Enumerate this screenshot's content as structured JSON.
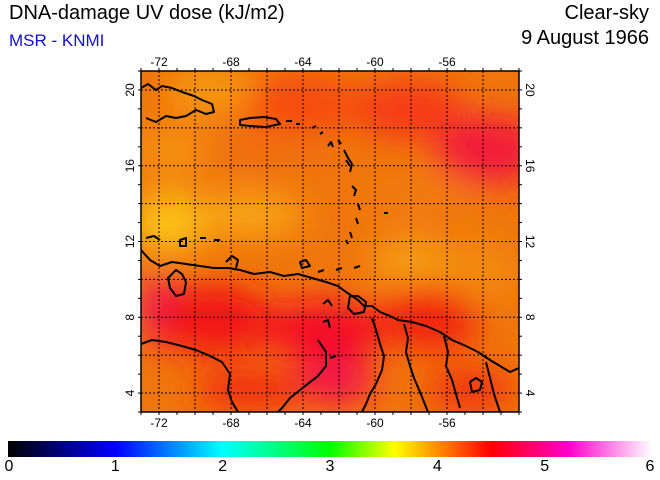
{
  "header": {
    "title": "DNA-damage UV dose (kJ/m2)",
    "source": "MSR - KNMI",
    "sky_condition": "Clear-sky",
    "date": "9 August 1966"
  },
  "map": {
    "lon_range": [
      -73,
      -52
    ],
    "lat_range": [
      3,
      21
    ],
    "lon_ticks": [
      -72,
      -68,
      -64,
      -60,
      -56
    ],
    "lat_ticks": [
      4,
      8,
      12,
      16,
      20
    ],
    "lon_tick_labels": [
      "-72",
      "-68",
      "-64",
      "-60",
      "-56"
    ],
    "lat_tick_labels": [
      "4",
      "8",
      "12",
      "16",
      "20"
    ],
    "grid": true,
    "gridline_style": "dotted",
    "coastline_color": "#000000"
  },
  "colorbar": {
    "min": 0,
    "max": 6,
    "labels": [
      "0",
      "1",
      "2",
      "3",
      "4",
      "5",
      "6"
    ],
    "stops": [
      "#000000",
      "#0000ff",
      "#00ffff",
      "#00ff00",
      "#ffff00",
      "#ff8000",
      "#ff0000",
      "#ff00ff",
      "#ffffff"
    ]
  }
}
